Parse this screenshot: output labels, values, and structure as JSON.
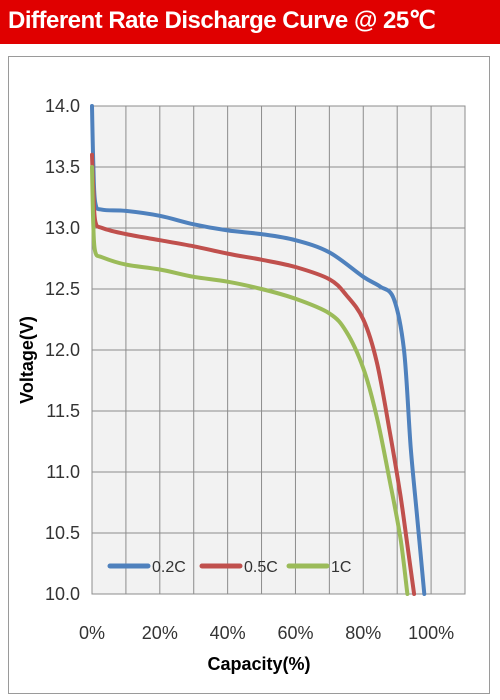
{
  "header": {
    "title": "Different Rate Discharge Curve @ 25℃"
  },
  "colors": {
    "header_background": "#e00000",
    "header_text": "#ffffff",
    "plot_background": "#f2f2f2",
    "grid": "#8c8c8c"
  },
  "chart_data": {
    "type": "line",
    "title": "",
    "xlabel": "Capacity(%)",
    "ylabel": "Voltage(V)",
    "xlim": [
      0,
      110
    ],
    "ylim": [
      10.0,
      14.0
    ],
    "x_ticks": [
      0,
      20,
      40,
      60,
      80,
      100
    ],
    "x_tick_labels": [
      "0%",
      "20%",
      "40%",
      "60%",
      "80%",
      "100%"
    ],
    "y_ticks": [
      10.0,
      10.5,
      11.0,
      11.5,
      12.0,
      12.5,
      13.0,
      13.5,
      14.0
    ],
    "y_tick_labels": [
      "10.0",
      "10.5",
      "11.0",
      "11.5",
      "12.0",
      "12.5",
      "13.0",
      "13.5",
      "14.0"
    ],
    "grid": true,
    "legend_position": "bottom-left",
    "series": [
      {
        "name": "0.2C",
        "color": "#4f81bd",
        "points": [
          [
            0,
            14.0
          ],
          [
            0.4,
            13.5
          ],
          [
            1,
            13.2
          ],
          [
            3,
            13.15
          ],
          [
            10,
            13.14
          ],
          [
            20,
            13.1
          ],
          [
            30,
            13.03
          ],
          [
            40,
            12.98
          ],
          [
            50,
            12.95
          ],
          [
            60,
            12.9
          ],
          [
            70,
            12.8
          ],
          [
            80,
            12.6
          ],
          [
            85,
            12.52
          ],
          [
            89,
            12.42
          ],
          [
            92,
            12.0
          ],
          [
            94,
            11.2
          ],
          [
            96,
            10.6
          ],
          [
            98,
            10.0
          ]
        ]
      },
      {
        "name": "0.5C",
        "color": "#c0504d",
        "points": [
          [
            0,
            13.6
          ],
          [
            0.4,
            13.3
          ],
          [
            1,
            13.05
          ],
          [
            3,
            13.0
          ],
          [
            10,
            12.95
          ],
          [
            20,
            12.9
          ],
          [
            30,
            12.85
          ],
          [
            40,
            12.79
          ],
          [
            50,
            12.74
          ],
          [
            60,
            12.68
          ],
          [
            70,
            12.58
          ],
          [
            75,
            12.45
          ],
          [
            80,
            12.25
          ],
          [
            84,
            11.9
          ],
          [
            88,
            11.3
          ],
          [
            91,
            10.8
          ],
          [
            93,
            10.4
          ],
          [
            95,
            10.0
          ]
        ]
      },
      {
        "name": "1C",
        "color": "#9bbb59",
        "points": [
          [
            0,
            13.5
          ],
          [
            0.4,
            13.0
          ],
          [
            1,
            12.8
          ],
          [
            3,
            12.76
          ],
          [
            10,
            12.7
          ],
          [
            20,
            12.66
          ],
          [
            30,
            12.6
          ],
          [
            40,
            12.56
          ],
          [
            50,
            12.5
          ],
          [
            60,
            12.42
          ],
          [
            70,
            12.3
          ],
          [
            75,
            12.15
          ],
          [
            80,
            11.85
          ],
          [
            84,
            11.45
          ],
          [
            88,
            10.9
          ],
          [
            91,
            10.45
          ],
          [
            93,
            10.0
          ]
        ]
      }
    ]
  }
}
